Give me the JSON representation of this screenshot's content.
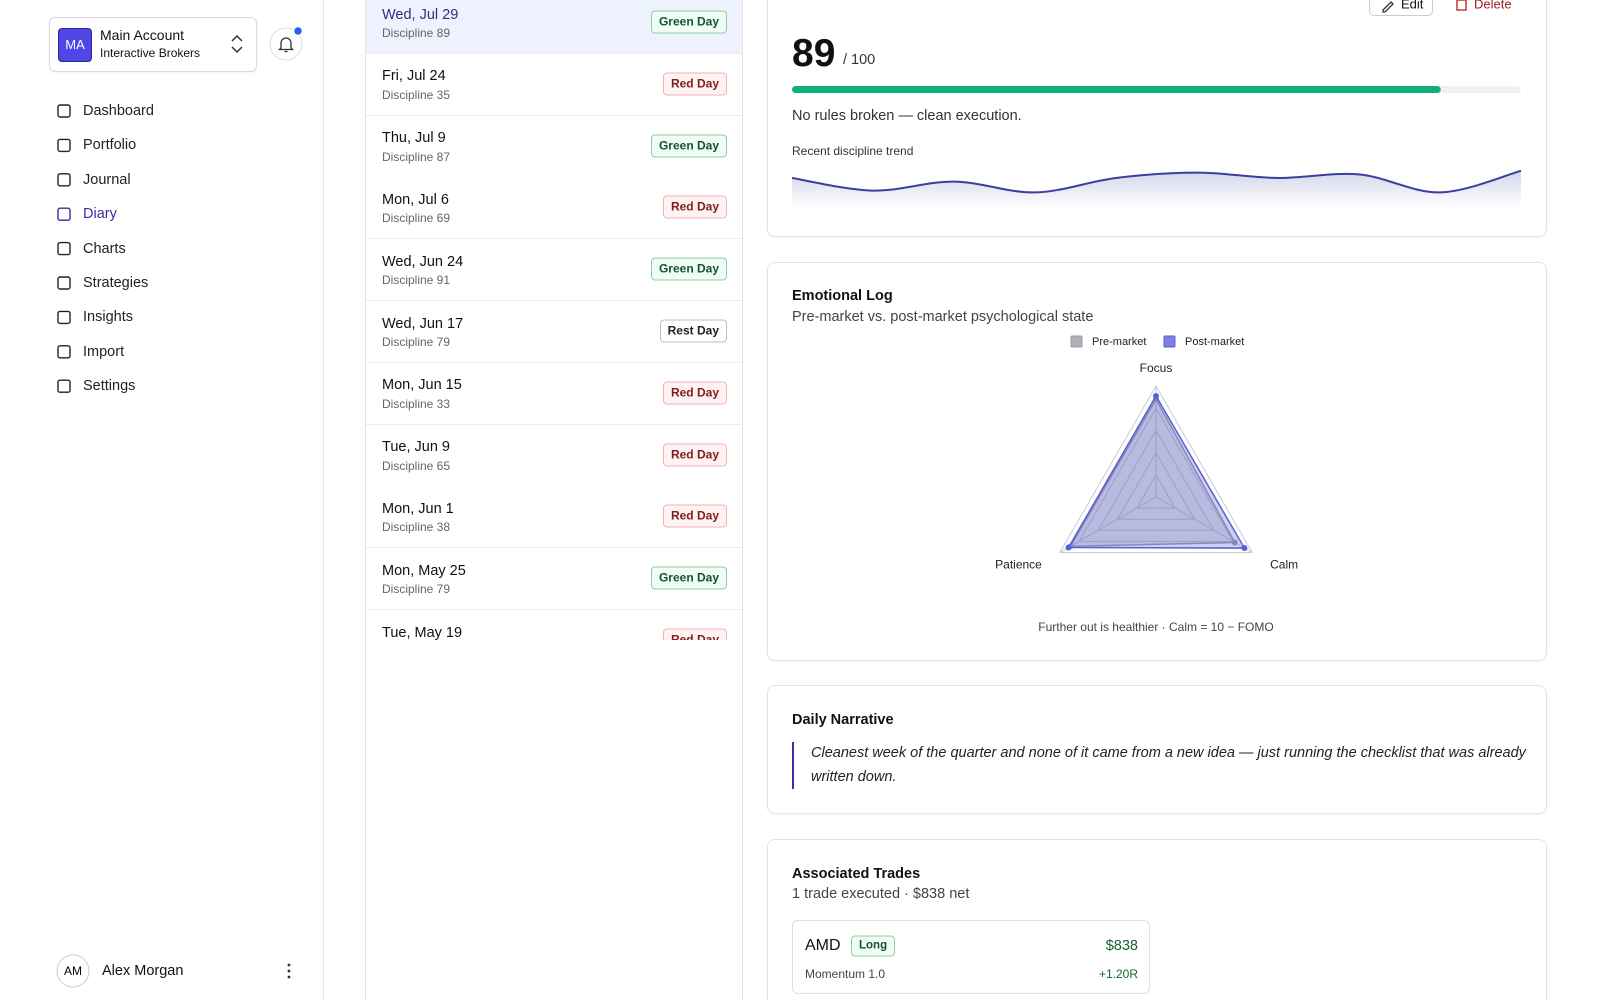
{
  "sidebar": {
    "account": {
      "initials": "MA",
      "name": "Main Account",
      "broker": "Interactive Brokers"
    },
    "nav": [
      "Dashboard",
      "Portfolio",
      "Journal",
      "Diary",
      "Charts",
      "Strategies",
      "Insights",
      "Import",
      "Settings"
    ],
    "active_index": 3,
    "user": {
      "initials": "AM",
      "name": "Alex Morgan"
    }
  },
  "diary_list": {
    "selected_index": 0,
    "entries": [
      {
        "date": "Wed, Jul 29",
        "discipline": "Discipline 89",
        "tag": "Green Day",
        "tone": "green"
      },
      {
        "date": "Fri, Jul 24",
        "discipline": "Discipline 35",
        "tag": "Red Day",
        "tone": "red"
      },
      {
        "date": "Thu, Jul 9",
        "discipline": "Discipline 87",
        "tag": "Green Day",
        "tone": "green"
      },
      {
        "date": "Mon, Jul 6",
        "discipline": "Discipline 69",
        "tag": "Red Day",
        "tone": "red"
      },
      {
        "date": "Wed, Jun 24",
        "discipline": "Discipline 91",
        "tag": "Green Day",
        "tone": "green"
      },
      {
        "date": "Wed, Jun 17",
        "discipline": "Discipline 79",
        "tag": "Rest Day",
        "tone": "gray"
      },
      {
        "date": "Mon, Jun 15",
        "discipline": "Discipline 33",
        "tag": "Red Day",
        "tone": "red"
      },
      {
        "date": "Tue, Jun 9",
        "discipline": "Discipline 65",
        "tag": "Red Day",
        "tone": "red"
      },
      {
        "date": "Mon, Jun 1",
        "discipline": "Discipline 38",
        "tag": "Red Day",
        "tone": "red"
      },
      {
        "date": "Mon, May 25",
        "discipline": "Discipline 79",
        "tag": "Green Day",
        "tone": "green"
      },
      {
        "date": "Tue, May 19",
        "tag": "Red Day",
        "tone": "red"
      }
    ]
  },
  "detail": {
    "actions": [
      "Edit",
      "Delete"
    ],
    "score": 89,
    "score_max": {
      "value": 100,
      "label": "/ 100"
    },
    "rules_note": "No rules broken — clean execution.",
    "trend": {
      "label": "Recent discipline trend",
      "values": [
        85,
        78,
        83,
        77,
        85,
        88,
        85,
        87,
        77,
        89
      ],
      "ylim": [
        70,
        95
      ],
      "color": "#3b3f9e"
    }
  },
  "emotional_log": {
    "title": "Emotional Log",
    "subtitle": "Pre-market vs. post-market psychological state",
    "chart": {
      "type": "radar",
      "axes": [
        "Focus",
        "Calm",
        "Patience"
      ],
      "rlim": [
        0,
        10
      ],
      "rticks": [
        2,
        4,
        6,
        8,
        10
      ],
      "series": [
        {
          "name": "Pre-market",
          "color": "#9b9ba6",
          "values": [
            8.8,
            8.2,
            8.9
          ]
        },
        {
          "name": "Post-market",
          "color": "#5b5fd6",
          "values": [
            9.1,
            9.2,
            9.1
          ]
        }
      ]
    },
    "note": "Further out is healthier · Calm = 10 − FOMO"
  },
  "narrative": {
    "title": "Daily Narrative",
    "text": "Cleanest week of the quarter and none of it came from a new idea — just running the checklist that was already written down."
  },
  "trades": {
    "title": "Associated Trades",
    "subtitle": "1 trade executed · $838 net",
    "items": [
      {
        "symbol": "AMD",
        "side": "Long",
        "pnl": "$838",
        "setup": "Momentum 1.0",
        "r": "+1.20R"
      }
    ]
  }
}
